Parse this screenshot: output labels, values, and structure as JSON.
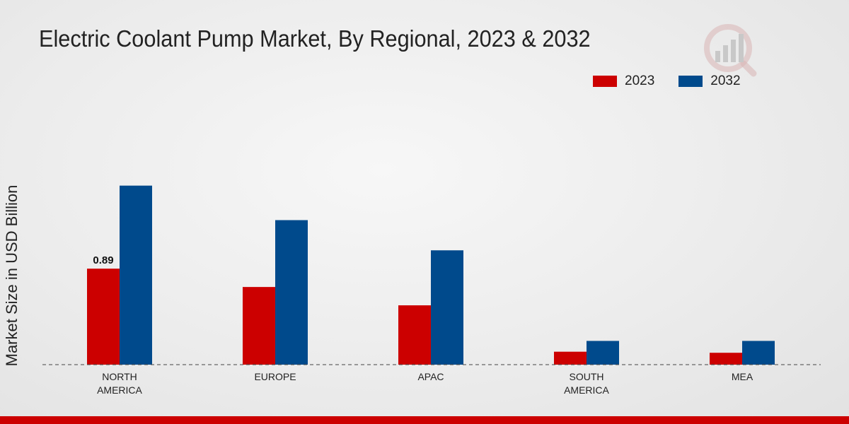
{
  "chart_data": {
    "type": "bar",
    "title": "Electric Coolant Pump Market, By Regional, 2023 & 2032",
    "ylabel": "Market Size in USD Billion",
    "xlabel": "",
    "categories": [
      "NORTH\nAMERICA",
      "EUROPE",
      "APAC",
      "SOUTH\nAMERICA",
      "MEA"
    ],
    "series": [
      {
        "name": "2023",
        "color": "#cc0000",
        "values": [
          0.89,
          0.72,
          0.55,
          0.12,
          0.11
        ]
      },
      {
        "name": "2032",
        "color": "#004a8c",
        "values": [
          1.66,
          1.34,
          1.06,
          0.22,
          0.22
        ]
      }
    ],
    "data_labels": [
      {
        "series": 0,
        "index": 0,
        "text": "0.89"
      }
    ],
    "ylim": [
      0,
      2.3
    ],
    "legend_position": "top-right",
    "grid": false
  }
}
